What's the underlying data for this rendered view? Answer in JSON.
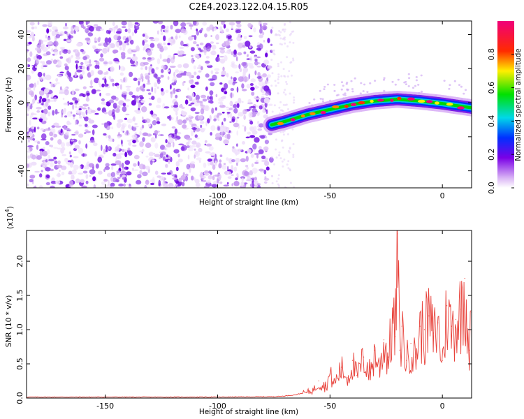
{
  "title": "C2E4.2023.122.04.15.R05",
  "chart_data": [
    {
      "type": "heatmap",
      "xlabel": "Height of straight line (km)",
      "ylabel": "Frequency (Hz)",
      "xlim": [
        -185,
        13
      ],
      "ylim": [
        -50,
        48
      ],
      "xticks": [
        -150,
        -100,
        -50,
        0
      ],
      "yticks": [
        -40,
        -20,
        0,
        20,
        40
      ],
      "colorbar": {
        "label": "Normalized spectral amplitude",
        "range": [
          0,
          1
        ],
        "ticks": [
          "0.0",
          "0.2",
          "0.4",
          "0.6",
          "0.8"
        ],
        "colormap": "rainbow (white-violet-blue-cyan-green-yellow-red-magenta)"
      },
      "signal_band": {
        "start_km": -76,
        "trace_km": [
          -76,
          -70,
          -60,
          -50,
          -40,
          -30,
          -20,
          -10,
          0,
          13
        ],
        "trace_hz": [
          -13,
          -11,
          -7,
          -4,
          -1,
          1,
          2,
          1,
          -0.5,
          -3
        ]
      },
      "noise_region": [
        -185,
        -76
      ]
    },
    {
      "type": "line",
      "xlabel": "Height of straight line (km)",
      "ylabel": "SNR (10 * v/v)",
      "y_scale_label": "(x10",
      "y_scale_exp": "4",
      "y_scale_close": ")",
      "xlim": [
        -185,
        13
      ],
      "ylim": [
        0,
        2.45
      ],
      "xticks": [
        -150,
        -100,
        -50,
        0
      ],
      "yticks": [
        "0.0",
        "0.5",
        "1.0",
        "1.5",
        "2.0"
      ],
      "color": "#e8413a",
      "series": [
        {
          "x": [
            -185,
            -150,
            -100,
            -75,
            -70,
            -65,
            -60,
            -57,
            -55,
            -52,
            -50,
            -48,
            -45,
            -42,
            -40,
            -38,
            -35,
            -32,
            -30,
            -28,
            -26,
            -24,
            -22,
            -21,
            -20,
            -19,
            -18,
            -16,
            -14,
            -12,
            -10,
            -8,
            -6,
            -4,
            -2,
            0,
            2,
            4,
            6,
            8,
            10,
            12,
            13
          ],
          "y": [
            0.015,
            0.015,
            0.015,
            0.02,
            0.03,
            0.05,
            0.09,
            0.13,
            0.25,
            0.18,
            0.35,
            0.22,
            0.45,
            0.3,
            0.55,
            0.33,
            0.6,
            0.38,
            0.7,
            0.45,
            0.85,
            0.6,
            1.2,
            0.9,
            2.4,
            0.7,
            1.05,
            0.55,
            0.8,
            0.6,
            1.05,
            1.0,
            1.2,
            0.95,
            1.1,
            0.55,
            1.35,
            1.05,
            1.15,
            1.3,
            1.75,
            0.7,
            1.25
          ]
        }
      ]
    }
  ]
}
